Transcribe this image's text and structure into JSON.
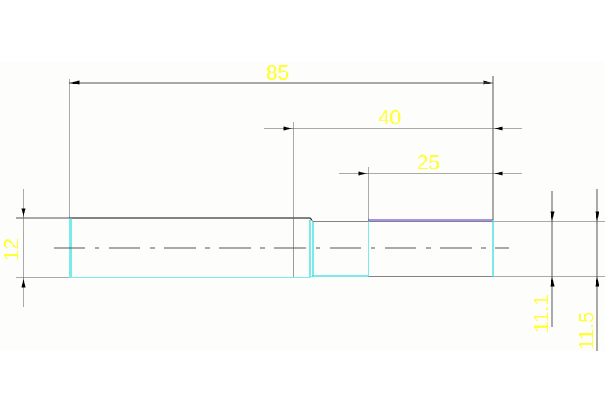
{
  "drawing": {
    "dimensions": {
      "overall_length": "85",
      "length_40": "40",
      "length_25": "25",
      "diameter_left": "12",
      "diameter_11_1": "11.1",
      "diameter_11_5": "11.5"
    },
    "colors": {
      "dimension_text": "#ffff33",
      "outline": "#3a3a3a",
      "edge_cyan": "#33e0e0",
      "edge_purple": "#8a70e0",
      "dimension_line": "#555555"
    }
  }
}
